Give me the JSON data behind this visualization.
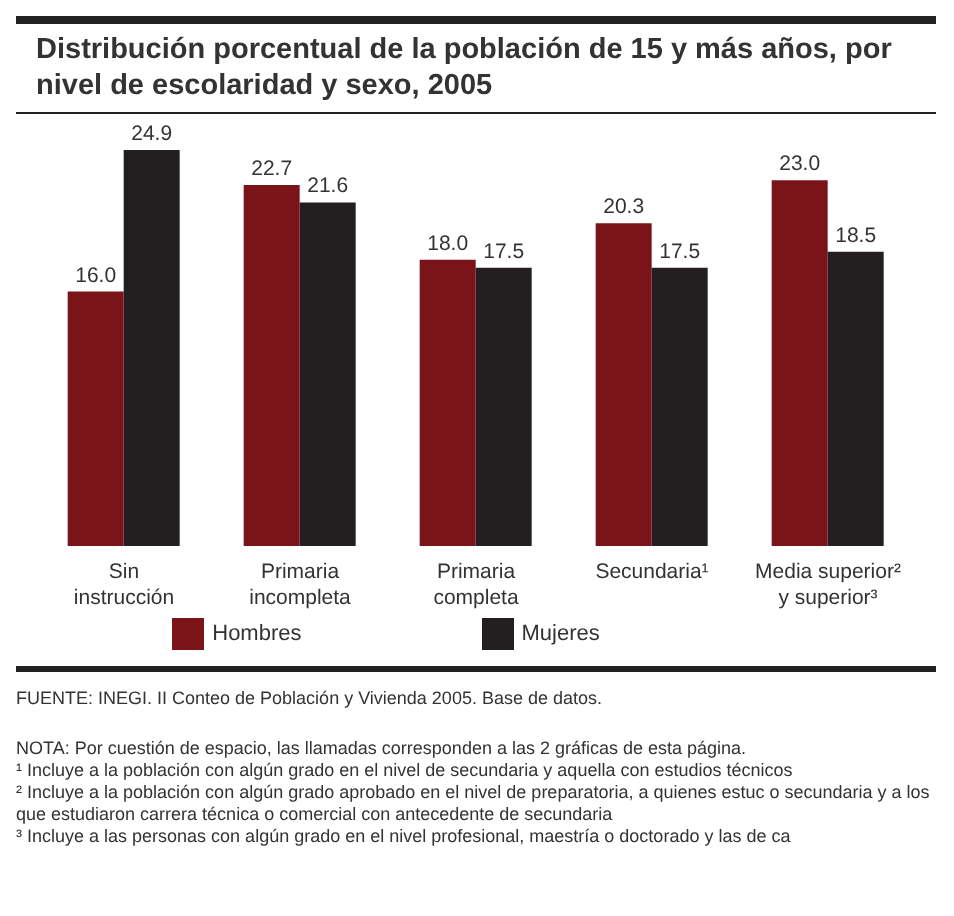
{
  "chart_data": {
    "type": "bar",
    "title": "Distribución porcentual de la población de 15 y más años, por nivel de escolaridad y sexo, 2005",
    "categories": [
      "Sin instrucción",
      "Primaria incompleta",
      "Primaria completa",
      "Secundaria¹",
      "Media superior² y superior³"
    ],
    "series": [
      {
        "name": "Hombres",
        "color": "#7b1418",
        "values": [
          16.0,
          22.7,
          18.0,
          20.3,
          23.0
        ],
        "value_labels": [
          "16.0",
          "22.7",
          "18.0",
          "20.3",
          "23.0"
        ]
      },
      {
        "name": "Mujeres",
        "color": "#231f20",
        "values": [
          24.9,
          21.6,
          17.5,
          17.5,
          18.5
        ],
        "value_labels": [
          "24.9",
          "21.6",
          "17.5",
          "17.5",
          "18.5"
        ]
      }
    ],
    "legend": "bottom",
    "grid": false,
    "annotations": [
      "FUENTE: INEGI. II Conteo de Población y Vivienda 2005. Base de datos.",
      "NOTA: Por cuestión de espacio, las llamadas corresponden a las 2 gráficas de esta página.",
      "¹ Incluye a la población con algún grado en el nivel de secundaria y aquella con estudios técnicos",
      "² Incluye a la población con algún grado aprobado en el nivel de preparatoria, a quienes estuc o secundaria y a los que estudiaron carrera técnica o comercial con antecedente de secundaria",
      "³ Incluye a las personas con algún grado en el nivel profesional, maestría o doctorado y las de ca"
    ]
  }
}
